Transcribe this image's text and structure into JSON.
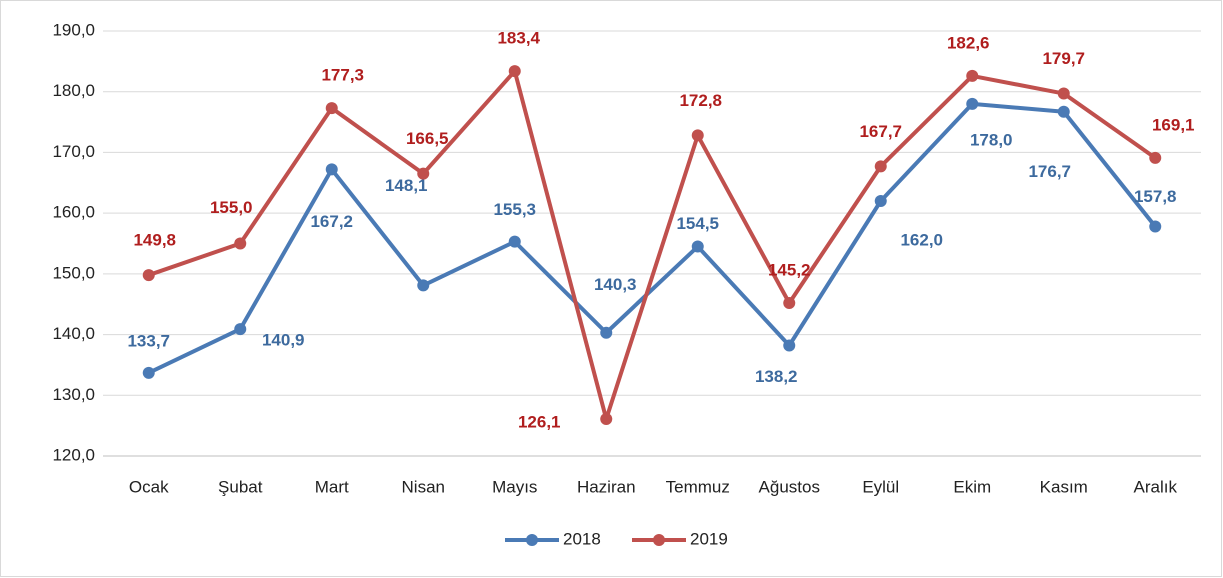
{
  "chart_data": {
    "type": "line",
    "categories": [
      "Ocak",
      "Şubat",
      "Mart",
      "Nisan",
      "Mayıs",
      "Haziran",
      "Temmuz",
      "Ağustos",
      "Eylül",
      "Ekim",
      "Kasım",
      "Aralık"
    ],
    "series": [
      {
        "name": "2018",
        "color": "#4a7ab5",
        "label_color": "#3d6a9e",
        "values": [
          133.7,
          140.9,
          167.2,
          148.1,
          155.3,
          140.3,
          154.5,
          138.2,
          162.0,
          178.0,
          176.7,
          157.8
        ],
        "value_labels": [
          "133,7",
          "140,9",
          "167,2",
          "148,1",
          "155,3",
          "140,3",
          "154,5",
          "138,2",
          "162,0",
          "178,0",
          "176,7",
          "157,8"
        ]
      },
      {
        "name": "2019",
        "color": "#c0504d",
        "label_color": "#b01e1e",
        "values": [
          149.8,
          155.0,
          177.3,
          166.5,
          183.4,
          126.1,
          172.8,
          145.2,
          167.7,
          182.6,
          179.7,
          169.1
        ],
        "value_labels": [
          "149,8",
          "155,0",
          "177,3",
          "166,5",
          "183,4",
          "126,1",
          "172,8",
          "145,2",
          "167,7",
          "182,6",
          "179,7",
          "169,1"
        ]
      }
    ],
    "ylim": [
      120,
      190
    ],
    "yticks": [
      {
        "value": 120,
        "label": "120,0"
      },
      {
        "value": 130,
        "label": "130,0"
      },
      {
        "value": 140,
        "label": "140,0"
      },
      {
        "value": 150,
        "label": "150,0"
      },
      {
        "value": 160,
        "label": "160,0"
      },
      {
        "value": 170,
        "label": "170,0"
      },
      {
        "value": 180,
        "label": "180,0"
      },
      {
        "value": 190,
        "label": "190,0"
      }
    ],
    "grid": true,
    "legend": "bottom"
  }
}
